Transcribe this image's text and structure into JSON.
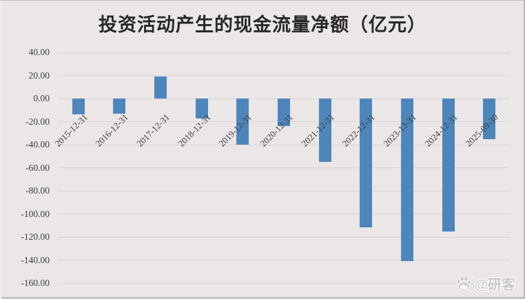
{
  "window": {
    "background_color": "#EAE7E6",
    "watermark_text": "@研客"
  },
  "chart_data": {
    "type": "bar",
    "title": "投资活动产生的现金流量净额（亿元）",
    "categories": [
      "2015-12-31",
      "2016-12-31",
      "2017-12-31",
      "2018-12-31",
      "2019-12-31",
      "2020-12-31",
      "2021-12-31",
      "2022-12-31",
      "2023-12-31",
      "2024-12-31",
      "2025-09-30"
    ],
    "values": [
      -13.9,
      -12.9,
      18.9,
      -17.4,
      -39.9,
      -23.9,
      -55.2,
      -111.6,
      -141.0,
      -115.3,
      -35.5
    ],
    "xlabel": "",
    "ylabel": "",
    "ylim": [
      -160,
      40
    ],
    "ytick_step": 20,
    "ytick_decimals": 2,
    "x_tick_rotation_deg": 45,
    "grid": true,
    "legend_position": "none",
    "bar_color": "#4E86BC",
    "gridline_color": "#D8D5D4",
    "axis_label_color": "#3F3F3F",
    "title_color": "#282828",
    "background_color": "#EAE7E6"
  }
}
